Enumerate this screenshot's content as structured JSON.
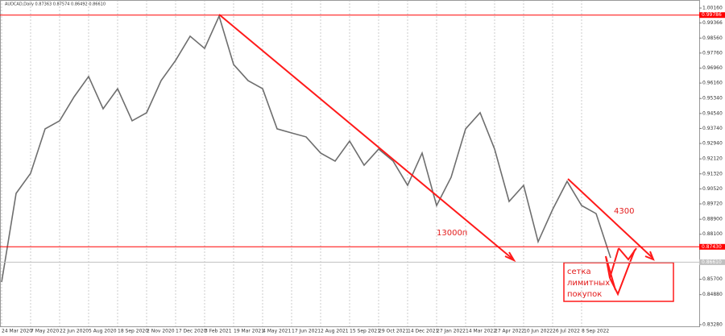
{
  "chart_data": {
    "type": "line",
    "title": "AUDCAD,Daily  0.87363 0.87574 0.86492 0.86610",
    "categories": [
      "24 Mar 2020",
      null,
      "7 May 2020",
      null,
      "22 Jun 2020",
      null,
      "5 Aug 2020",
      null,
      "18 Sep 2020",
      null,
      "2 Nov 2020",
      null,
      "17 Dec 2020",
      null,
      "3 Feb 2021",
      null,
      "19 Mar 2021",
      null,
      "4 May 2021",
      null,
      "17 Jun 2021",
      null,
      "2 Aug 2021",
      null,
      "15 Sep 2021",
      null,
      "29 Oct 2021",
      null,
      "14 Dec 2021",
      null,
      "27 Jan 2022",
      null,
      "14 Mar 2022",
      null,
      "27 Apr 2022",
      null,
      "10 Jun 2022",
      null,
      "26 Jul 2022",
      null,
      "8 Sep 2022",
      null,
      null
    ],
    "series": [
      {
        "name": "AUDCAD",
        "color": "#6e6e6e",
        "values": [
          0.8555,
          0.9028,
          0.9135,
          0.9372,
          0.9415,
          0.9543,
          0.9651,
          0.9479,
          0.9586,
          0.9415,
          0.9458,
          0.9629,
          0.9737,
          0.9866,
          0.9801,
          0.9973,
          0.9715,
          0.9629,
          0.9586,
          0.9372,
          0.935,
          0.9329,
          0.9243,
          0.92,
          0.9307,
          0.9178,
          0.9264,
          0.92,
          0.9071,
          0.9243,
          0.8963,
          0.9114,
          0.9372,
          0.9458,
          0.9264,
          0.8985,
          0.9071,
          0.877,
          0.8942,
          0.9092,
          0.8963,
          0.892,
          0.8684
        ]
      }
    ],
    "ylim": [
      0.8319,
      1.0059
    ],
    "yticks": [
      {
        "value": 1.0016,
        "label": "1.00160"
      },
      {
        "value": 0.99366,
        "label": "0.99366"
      },
      {
        "value": 0.9856,
        "label": "0.98560"
      },
      {
        "value": 0.9776,
        "label": "0.97760"
      },
      {
        "value": 0.9696,
        "label": "0.96960"
      },
      {
        "value": 0.9616,
        "label": "0.96160"
      },
      {
        "value": 0.9534,
        "label": "0.95340"
      },
      {
        "value": 0.9454,
        "label": "0.94540"
      },
      {
        "value": 0.9374,
        "label": "0.93740"
      },
      {
        "value": 0.9294,
        "label": "0.92940"
      },
      {
        "value": 0.9212,
        "label": "0.92120"
      },
      {
        "value": 0.9132,
        "label": "0.91320"
      },
      {
        "value": 0.9052,
        "label": "0.90520"
      },
      {
        "value": 0.8972,
        "label": "0.89720"
      },
      {
        "value": 0.889,
        "label": "0.88900"
      },
      {
        "value": 0.881,
        "label": "0.88100"
      },
      {
        "value": 0.857,
        "label": "0.85700"
      },
      {
        "value": 0.8488,
        "label": "0.84880"
      },
      {
        "value": 0.8328,
        "label": "0.83280"
      }
    ],
    "levels": [
      {
        "value": 0.99786,
        "label": "0.99786",
        "color": "#ff0000"
      },
      {
        "value": 0.8743,
        "label": "0.87430",
        "color": "#ff0000"
      },
      {
        "value": 0.8661,
        "label": "0.86610",
        "color": "#c0c0c0"
      }
    ],
    "annotations": [
      "13000п",
      "4300",
      "сетка",
      "лимитных",
      "покупок"
    ],
    "grid": true
  }
}
